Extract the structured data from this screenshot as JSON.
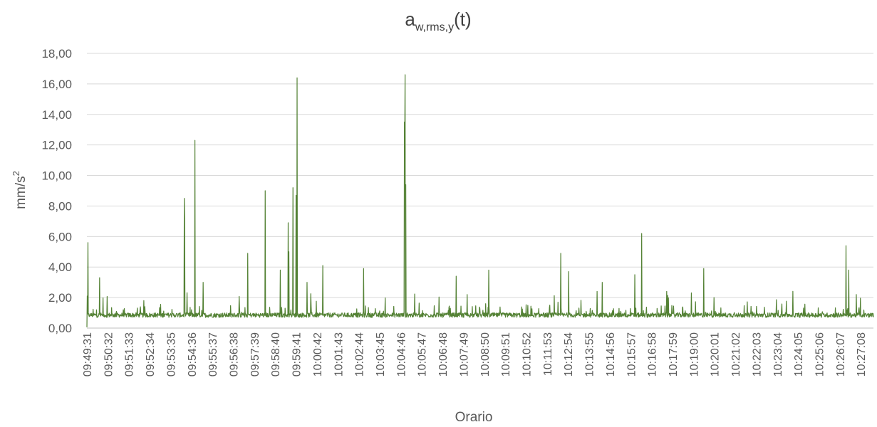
{
  "chart_data": {
    "type": "line",
    "title": "aw,rms,y(t)",
    "title_parts": {
      "base": "a",
      "subscript": "w,rms,y",
      "suffix": "(t)"
    },
    "xlabel": "Orario",
    "ylabel": "mm/s2",
    "ylabel_parts": {
      "base": "mm/s",
      "superscript": "2"
    },
    "ylim": [
      0,
      18
    ],
    "yticks": [
      "0,00",
      "2,00",
      "4,00",
      "6,00",
      "8,00",
      "10,00",
      "12,00",
      "14,00",
      "16,00",
      "18,00"
    ],
    "x_tick_labels": [
      "09:49:31",
      "09:50:32",
      "09:51:33",
      "09:52:34",
      "09:53:35",
      "09:54:36",
      "09:55:37",
      "09:56:38",
      "09:57:39",
      "09:58:40",
      "09:59:41",
      "10:00:42",
      "10:01:43",
      "10:02:44",
      "10:03:45",
      "10:04:46",
      "10:05:47",
      "10:06:48",
      "10:07:49",
      "10:08:50",
      "10:09:51",
      "10:10:52",
      "10:11:53",
      "10:12:54",
      "10:13:55",
      "10:14:56",
      "10:15:57",
      "10:16:58",
      "10:17:59",
      "10:19:00",
      "10:20:01",
      "10:21:02",
      "10:22:03",
      "10:23:04",
      "10:24:05",
      "10:25:06",
      "10:26:07",
      "10:27:08"
    ],
    "grid": true,
    "legend": "none",
    "colors": {
      "series": "#548235"
    },
    "series": [
      {
        "x_range": [
          "09:49:31",
          "10:27:45"
        ],
        "baseline": 0.85,
        "noise": 0.15,
        "peaks": [
          {
            "x": "09:49:34",
            "y": 5.6
          },
          {
            "x": "09:50:08",
            "y": 3.3
          },
          {
            "x": "09:52:17",
            "y": 1.8
          },
          {
            "x": "09:54:15",
            "y": 8.5
          },
          {
            "x": "09:54:16",
            "y": 7.2
          },
          {
            "x": "09:54:46",
            "y": 12.3
          },
          {
            "x": "09:55:10",
            "y": 3.0
          },
          {
            "x": "09:57:20",
            "y": 4.9
          },
          {
            "x": "09:58:11",
            "y": 9.0
          },
          {
            "x": "09:58:55",
            "y": 3.8
          },
          {
            "x": "09:59:18",
            "y": 6.9
          },
          {
            "x": "09:59:20",
            "y": 5.0
          },
          {
            "x": "09:59:32",
            "y": 9.2
          },
          {
            "x": "09:59:41",
            "y": 8.7
          },
          {
            "x": "09:59:44",
            "y": 16.4
          },
          {
            "x": "10:00:13",
            "y": 3.0
          },
          {
            "x": "10:00:59",
            "y": 4.1
          },
          {
            "x": "10:02:58",
            "y": 3.9
          },
          {
            "x": "10:04:57",
            "y": 13.5
          },
          {
            "x": "10:04:58",
            "y": 12.4
          },
          {
            "x": "10:04:59",
            "y": 16.6
          },
          {
            "x": "10:05:01",
            "y": 9.4
          },
          {
            "x": "10:07:28",
            "y": 3.4
          },
          {
            "x": "10:08:00",
            "y": 2.2
          },
          {
            "x": "10:09:03",
            "y": 3.8
          },
          {
            "x": "10:12:33",
            "y": 4.9
          },
          {
            "x": "10:12:56",
            "y": 3.7
          },
          {
            "x": "10:14:19",
            "y": 2.4
          },
          {
            "x": "10:14:34",
            "y": 3.0
          },
          {
            "x": "10:16:09",
            "y": 3.5
          },
          {
            "x": "10:16:29",
            "y": 6.2
          },
          {
            "x": "10:17:42",
            "y": 2.4
          },
          {
            "x": "10:19:30",
            "y": 3.9
          },
          {
            "x": "10:20:00",
            "y": 2.0
          },
          {
            "x": "10:26:25",
            "y": 5.4
          },
          {
            "x": "10:26:33",
            "y": 3.8
          },
          {
            "x": "10:26:55",
            "y": 2.2
          }
        ]
      }
    ]
  }
}
